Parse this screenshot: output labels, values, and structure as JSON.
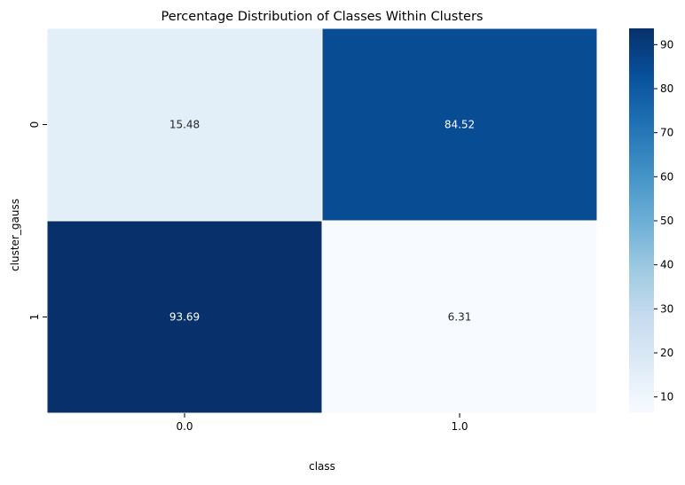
{
  "chart_data": {
    "type": "heatmap",
    "title": "Percentage Distribution of Classes Within Clusters",
    "xlabel": "class",
    "ylabel": "cluster_gauss",
    "x_categories": [
      "0.0",
      "1.0"
    ],
    "y_categories": [
      "0",
      "1"
    ],
    "values": [
      [
        15.48,
        84.52
      ],
      [
        93.69,
        6.31
      ]
    ],
    "cell_labels": [
      [
        "15.48",
        "84.52"
      ],
      [
        "93.69",
        "6.31"
      ]
    ],
    "colormap": "Blues",
    "colorbar": {
      "range": [
        6.31,
        93.69
      ],
      "ticks": [
        10,
        20,
        30,
        40,
        50,
        60,
        70,
        80,
        90
      ],
      "tick_labels": [
        "10",
        "20",
        "30",
        "40",
        "50",
        "60",
        "70",
        "80",
        "90"
      ]
    },
    "grid": false
  }
}
